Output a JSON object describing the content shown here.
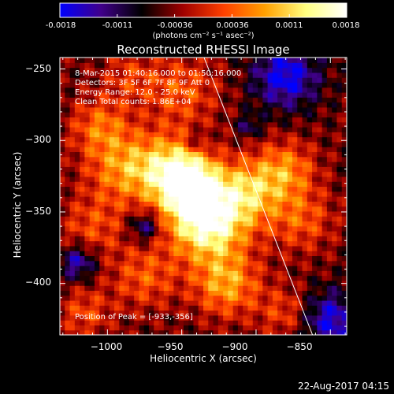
{
  "colorbar": {
    "ticks": [
      "-0.0018",
      "-0.0011",
      "-0.00036",
      "0.00036",
      "0.0011",
      "0.0018"
    ],
    "units": "(photons cm⁻² s⁻¹ asec⁻²)"
  },
  "info": {
    "line1": "8-Mar-2015 01:40:16.000 to 01:50:16.000",
    "line2": "Detectors: 3F 5F 6F 7F 8F 9F  Att 0",
    "line3": "Energy Range: 12.0 - 25.0 keV",
    "line4": "Clean     Total counts: 1.86E+04",
    "peak": "Position of Peak = [-933,-356]"
  },
  "footer": "22-Aug-2017 04:15",
  "chart_data": {
    "type": "heatmap",
    "title": "Reconstructed RHESSI Image",
    "xlabel": "Heliocentric X (arcsec)",
    "ylabel": "Heliocentric Y (arcsec)",
    "xlim": [
      -1032,
      -839
    ],
    "ylim": [
      -436,
      -242
    ],
    "xticks": [
      -1000,
      -950,
      -900,
      -850
    ],
    "yticks": [
      -250,
      -300,
      -350,
      -400
    ],
    "x_tick_labels": [
      "−1000",
      "−950",
      "−900",
      "−850"
    ],
    "y_tick_labels": [
      "−250",
      "−300",
      "−350",
      "−400"
    ],
    "colorbar_range": [
      -0.0018,
      0.0018
    ],
    "colormap": [
      "#0000ff",
      "#40008a",
      "#000000",
      "#a00000",
      "#ff4000",
      "#ffa000",
      "#ffff80",
      "#ffffff"
    ],
    "peak": [
      -933,
      -356
    ],
    "limb_line": {
      "color": "#ffffff",
      "points": [
        [
          -935,
          -242
        ],
        [
          -862,
          -436
        ]
      ]
    }
  }
}
